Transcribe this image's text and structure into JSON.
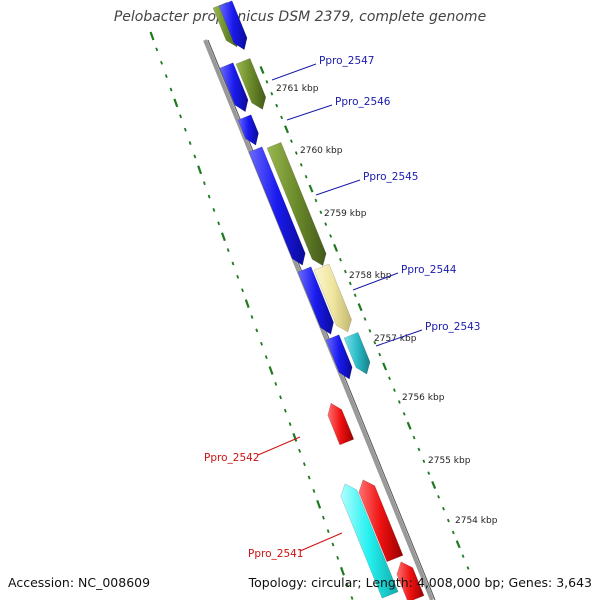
{
  "title": "Pelobacter propionicus DSM 2379, complete genome",
  "footer": {
    "accession": "Accession: NC_008609",
    "summary": "Topology: circular; Length: 4,008,000 bp; Genes: 3,643"
  },
  "colors": {
    "backbone": "#8a8a8a",
    "tick": "#1f7a1f",
    "blue": "#1a1aee",
    "olive": "#6b8a2a",
    "khaki": "#f0e6a0",
    "teal": "#2bbcc8",
    "cyan": "#22f0f0",
    "red": "#ee1111",
    "label_blue": "#1a1aaa",
    "label_red": "#cc1111"
  },
  "position_labels": [
    "2761 kbp",
    "2760 kbp",
    "2759 kbp",
    "2758 kbp",
    "2757 kbp",
    "2756 kbp",
    "2755 kbp",
    "2754 kbp"
  ],
  "gene_labels": [
    {
      "text": "Ppro_2547",
      "color": "blue"
    },
    {
      "text": "Ppro_2546",
      "color": "blue"
    },
    {
      "text": "Ppro_2545",
      "color": "blue"
    },
    {
      "text": "Ppro_2544",
      "color": "blue"
    },
    {
      "text": "Ppro_2543",
      "color": "blue"
    },
    {
      "text": "Ppro_2542",
      "color": "red"
    },
    {
      "text": "Ppro_2541",
      "color": "red"
    }
  ]
}
